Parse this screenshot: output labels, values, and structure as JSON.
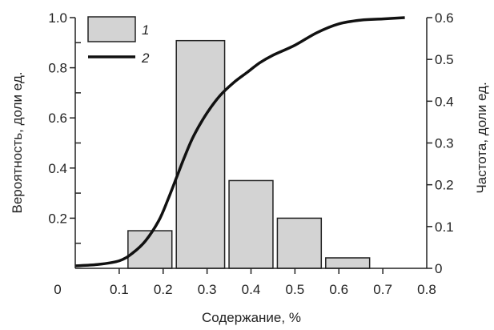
{
  "chart_data": {
    "type": "bar",
    "xlabel": "Содержание, %",
    "ylabel_left": "Вероятность, доли ед.",
    "ylabel_right": "Частота, доли ед.",
    "x_ticks": [
      "0",
      "0.1",
      "0.2",
      "0.3",
      "0.4",
      "0.5",
      "0.6",
      "0.7",
      "0.8"
    ],
    "y_left_ticks": [
      "0.2",
      "0.4",
      "0.6",
      "0.8",
      "1.0"
    ],
    "y_right_ticks": [
      "0",
      "0.1",
      "0.2",
      "0.3",
      "0.4",
      "0.5",
      "0.6"
    ],
    "xlim": [
      0,
      0.8
    ],
    "ylim_left": [
      0,
      1.0
    ],
    "ylim_right": [
      0,
      0.6
    ],
    "grid": false,
    "legend_position": "top-left",
    "legend": [
      {
        "marker": "bar",
        "label": "1"
      },
      {
        "marker": "line",
        "label": "2"
      }
    ],
    "colors": {
      "bar_fill": "#d3d3d3",
      "bar_stroke": "#222222",
      "line": "#111111",
      "axis": "#222222"
    },
    "bars": {
      "axis": "right",
      "bins": [
        {
          "x0": 0.12,
          "x1": 0.22,
          "value": 0.09
        },
        {
          "x0": 0.23,
          "x1": 0.34,
          "value": 0.545
        },
        {
          "x0": 0.35,
          "x1": 0.45,
          "value": 0.21
        },
        {
          "x0": 0.46,
          "x1": 0.56,
          "value": 0.12
        },
        {
          "x0": 0.57,
          "x1": 0.67,
          "value": 0.025
        }
      ]
    },
    "line": {
      "axis": "left",
      "x": [
        0.0,
        0.05,
        0.1,
        0.13,
        0.16,
        0.19,
        0.21,
        0.23,
        0.25,
        0.27,
        0.3,
        0.33,
        0.36,
        0.39,
        0.42,
        0.45,
        0.5,
        0.55,
        0.6,
        0.65,
        0.7,
        0.75
      ],
      "y": [
        0.01,
        0.015,
        0.03,
        0.06,
        0.11,
        0.19,
        0.27,
        0.36,
        0.45,
        0.53,
        0.62,
        0.69,
        0.74,
        0.78,
        0.82,
        0.85,
        0.89,
        0.94,
        0.975,
        0.99,
        0.995,
        1.0
      ]
    }
  }
}
